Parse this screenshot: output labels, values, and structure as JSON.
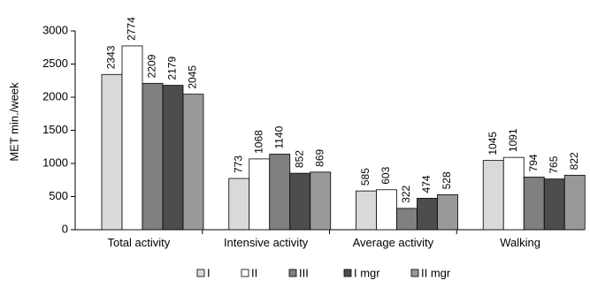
{
  "chart_data": {
    "type": "bar",
    "ylabel": "MET min./week",
    "xlabel": "",
    "ylim": [
      0,
      3000
    ],
    "yticks": [
      0,
      500,
      1000,
      1500,
      2000,
      2500,
      3000
    ],
    "grid": false,
    "legend_position": "bottom",
    "categories": [
      "Total activity",
      "Intensive activity",
      "Average activity",
      "Walking"
    ],
    "series": [
      {
        "name": "I",
        "color": "#d9d9d9",
        "values": [
          2343,
          773,
          585,
          1045
        ]
      },
      {
        "name": "II",
        "color": "#ffffff",
        "values": [
          2774,
          1068,
          603,
          1091
        ]
      },
      {
        "name": "III",
        "color": "#808080",
        "values": [
          2209,
          1140,
          322,
          794
        ]
      },
      {
        "name": "I mgr",
        "color": "#4d4d4d",
        "values": [
          2179,
          852,
          474,
          765
        ]
      },
      {
        "name": "II mgr",
        "color": "#999999",
        "values": [
          2045,
          869,
          528,
          822
        ]
      }
    ]
  }
}
